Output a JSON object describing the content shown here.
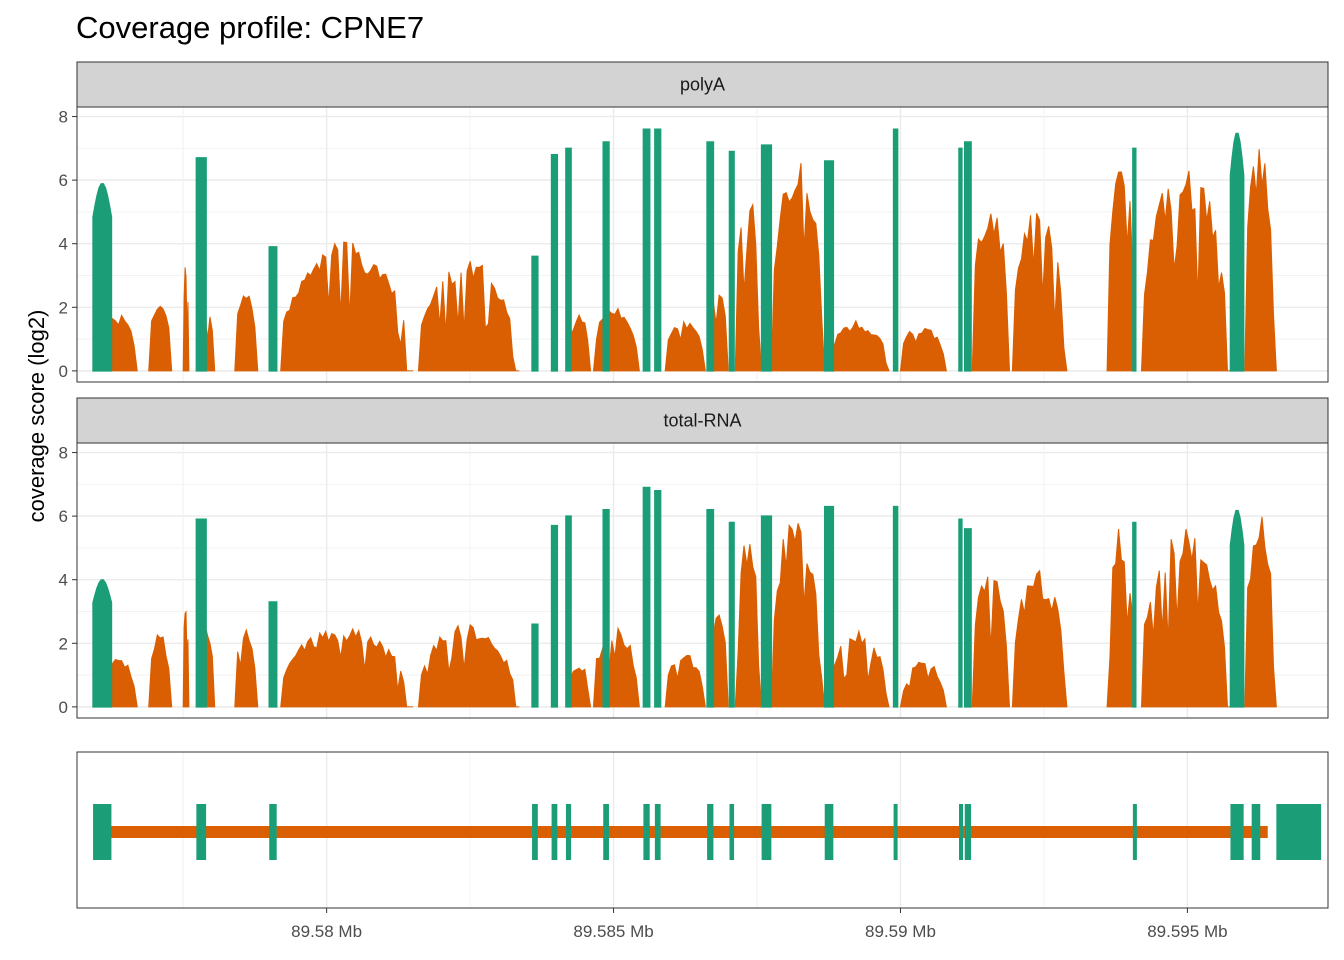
{
  "title": "Coverage profile: CPNE7",
  "colors": {
    "exon": "#1b9e77",
    "intron": "#d95f02",
    "strip_fill": "#d3d3d3",
    "grid": "#ebebeb"
  },
  "chart_data": {
    "type": "area",
    "ylabel": "coverage score (log2)",
    "xlim_mb": [
      89.57565,
      89.59745
    ],
    "ylim": [
      -0.35,
      8.3
    ],
    "x_ticks": [
      {
        "value": 89.58,
        "label": "89.58 Mb"
      },
      {
        "value": 89.585,
        "label": "89.585 Mb"
      },
      {
        "value": 89.59,
        "label": "89.59 Mb"
      },
      {
        "value": 89.595,
        "label": "89.595 Mb"
      }
    ],
    "y_ticks": [
      0,
      2,
      4,
      6,
      8
    ],
    "facets": [
      {
        "label": "polyA",
        "exon_peaks": [
          5.9,
          6.7,
          3.9,
          3.6,
          6.8,
          7.0,
          7.2,
          7.6,
          7.6,
          7.2,
          6.9,
          7.1,
          6.6,
          7.6,
          7.0,
          7.2,
          7.0,
          7.5
        ],
        "intron_segments": [
          {
            "start": 89.5761,
            "end": 89.5767,
            "peak": 1.8
          },
          {
            "start": 89.5769,
            "end": 89.5773,
            "peak": 2.4
          },
          {
            "start": 89.5775,
            "end": 89.5776,
            "peak": 3.4
          },
          {
            "start": 89.5778,
            "end": 89.57805,
            "peak": 1.9
          },
          {
            "start": 89.5784,
            "end": 89.5788,
            "peak": 2.5
          },
          {
            "start": 89.5792,
            "end": 89.5815,
            "peak": 4.1
          },
          {
            "start": 89.5816,
            "end": 89.58335,
            "peak": 3.6
          },
          {
            "start": 89.5842,
            "end": 89.5846,
            "peak": 1.8
          },
          {
            "start": 89.58465,
            "end": 89.58545,
            "peak": 2.1
          },
          {
            "start": 89.5859,
            "end": 89.5866,
            "peak": 1.6
          },
          {
            "start": 89.58668,
            "end": 89.587,
            "peak": 3.0
          },
          {
            "start": 89.58712,
            "end": 89.58758,
            "peak": 6.0
          },
          {
            "start": 89.58775,
            "end": 89.58868,
            "peak": 6.8
          },
          {
            "start": 89.58875,
            "end": 89.5898,
            "peak": 1.6
          },
          {
            "start": 89.59,
            "end": 89.5908,
            "peak": 1.5
          },
          {
            "start": 89.59125,
            "end": 89.5919,
            "peak": 5.6
          },
          {
            "start": 89.59195,
            "end": 89.5929,
            "peak": 5.2
          },
          {
            "start": 89.5936,
            "end": 89.5941,
            "peak": 7.0
          },
          {
            "start": 89.5942,
            "end": 89.59575,
            "peak": 6.5
          },
          {
            "start": 89.596,
            "end": 89.59655,
            "peak": 7.1
          }
        ]
      },
      {
        "label": "total-RNA",
        "exon_peaks": [
          4.0,
          5.9,
          3.3,
          2.6,
          5.7,
          6.0,
          6.2,
          6.9,
          6.8,
          6.2,
          5.8,
          6.0,
          6.3,
          6.3,
          5.9,
          5.6,
          5.8,
          6.2
        ],
        "intron_segments": [
          {
            "start": 89.5761,
            "end": 89.5767,
            "peak": 1.6
          },
          {
            "start": 89.5769,
            "end": 89.5773,
            "peak": 2.4
          },
          {
            "start": 89.5775,
            "end": 89.5776,
            "peak": 3.8
          },
          {
            "start": 89.5778,
            "end": 89.57805,
            "peak": 2.7
          },
          {
            "start": 89.5784,
            "end": 89.5788,
            "peak": 2.5
          },
          {
            "start": 89.5792,
            "end": 89.5815,
            "peak": 2.5
          },
          {
            "start": 89.5816,
            "end": 89.58335,
            "peak": 2.6
          },
          {
            "start": 89.5842,
            "end": 89.5846,
            "peak": 1.5
          },
          {
            "start": 89.58465,
            "end": 89.58545,
            "peak": 2.6
          },
          {
            "start": 89.5859,
            "end": 89.5866,
            "peak": 1.7
          },
          {
            "start": 89.58668,
            "end": 89.587,
            "peak": 3.1
          },
          {
            "start": 89.58712,
            "end": 89.58758,
            "peak": 5.4
          },
          {
            "start": 89.58775,
            "end": 89.58868,
            "peak": 6.1
          },
          {
            "start": 89.58875,
            "end": 89.5898,
            "peak": 2.4
          },
          {
            "start": 89.59,
            "end": 89.5908,
            "peak": 1.5
          },
          {
            "start": 89.59125,
            "end": 89.5919,
            "peak": 4.5
          },
          {
            "start": 89.59195,
            "end": 89.5929,
            "peak": 4.3
          },
          {
            "start": 89.5936,
            "end": 89.5941,
            "peak": 5.9
          },
          {
            "start": 89.5942,
            "end": 89.59575,
            "peak": 5.7
          },
          {
            "start": 89.596,
            "end": 89.59655,
            "peak": 6.1
          }
        ]
      }
    ],
    "gene_model": {
      "intron_span": [
        89.5762,
        89.5964
      ],
      "exons": [
        [
          89.57593,
          89.57625
        ],
        [
          89.57773,
          89.5779
        ],
        [
          89.579,
          89.57913
        ],
        [
          89.58358,
          89.58368
        ],
        [
          89.58392,
          89.58402
        ],
        [
          89.58417,
          89.58426
        ],
        [
          89.58482,
          89.58492
        ],
        [
          89.58552,
          89.58563
        ],
        [
          89.58572,
          89.58582
        ],
        [
          89.58663,
          89.58674
        ],
        [
          89.58702,
          89.5871
        ],
        [
          89.58758,
          89.58775
        ],
        [
          89.58868,
          89.58883
        ],
        [
          89.58988,
          89.58995
        ],
        [
          89.59102,
          89.59107
        ],
        [
          89.59112,
          89.59123
        ],
        [
          89.59405,
          89.5941
        ],
        [
          89.59575,
          89.59598
        ],
        [
          89.59612,
          89.59627
        ],
        [
          89.59655,
          89.59733
        ]
      ]
    }
  }
}
